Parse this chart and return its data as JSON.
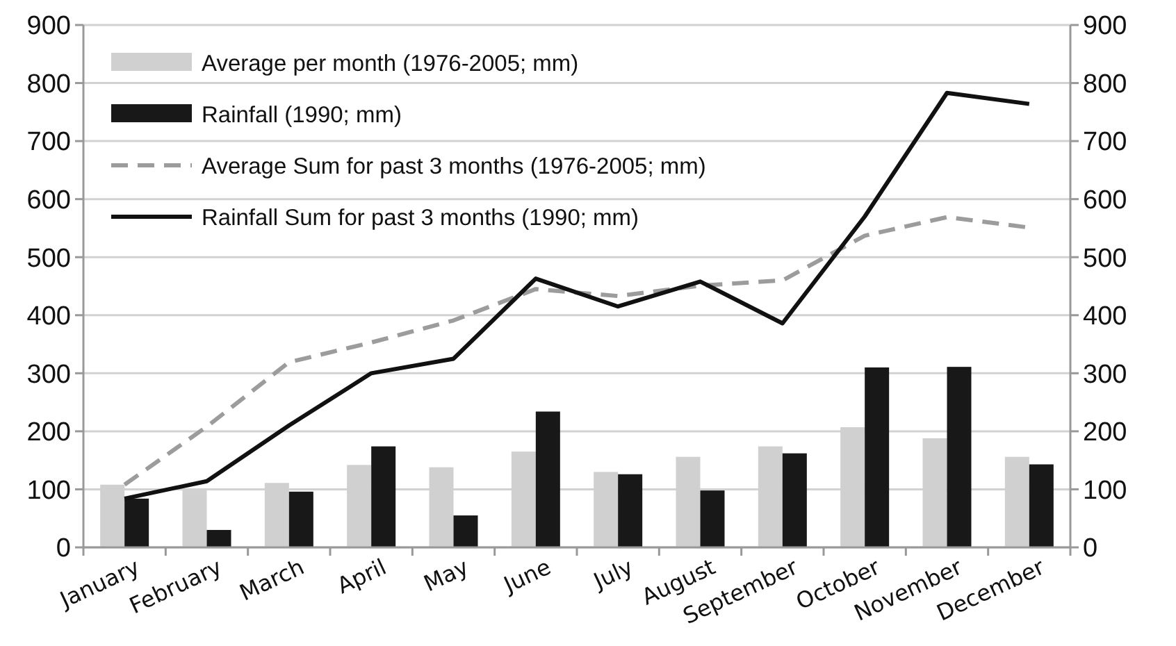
{
  "chart_data": {
    "type": "bar",
    "categories": [
      "January",
      "February",
      "March",
      "April",
      "May",
      "June",
      "July",
      "August",
      "September",
      "October",
      "November",
      "December"
    ],
    "series": [
      {
        "name": "Average per month (1976-2005; mm)",
        "color": "#cfd0cf",
        "values": [
          108,
          100,
          111,
          142,
          138,
          165,
          130,
          156,
          174,
          207,
          188,
          156
        ]
      },
      {
        "name": "Rainfall (1990; mm)",
        "color": "#181818",
        "values": [
          84,
          30,
          96,
          174,
          55,
          234,
          126,
          98,
          162,
          310,
          311,
          143
        ]
      },
      {
        "name": "Average Sum for past 3 months (1976-2005; mm)",
        "type": "line",
        "color": "#9c9c9c",
        "line_style": "dashed",
        "values": [
          108,
          208,
          319,
          353,
          391,
          445,
          433,
          451,
          460,
          537,
          569,
          551
        ]
      },
      {
        "name": "Rainfall Sum for past 3 months (1990; mm)",
        "type": "line",
        "color": "#111111",
        "line_style": "solid",
        "values": [
          84,
          114,
          210,
          300,
          325,
          463,
          415,
          458,
          386,
          570,
          783,
          764
        ]
      }
    ],
    "ylim": [
      0,
      900
    ],
    "yticks": [
      0,
      100,
      200,
      300,
      400,
      500,
      600,
      700,
      800,
      900
    ],
    "y2lim": [
      0,
      900
    ],
    "y2ticks": [
      0,
      100,
      200,
      300,
      400,
      500,
      600,
      700,
      800,
      900
    ],
    "grid": "y",
    "legend": "top left",
    "marker": "none"
  }
}
